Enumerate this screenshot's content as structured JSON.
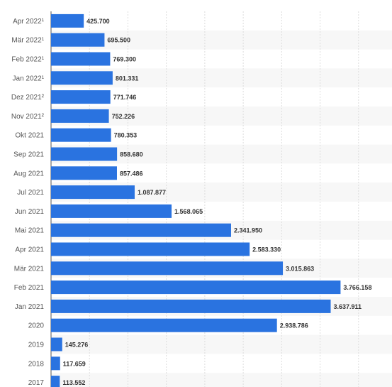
{
  "chart_data": {
    "type": "bar",
    "orientation": "horizontal",
    "categories": [
      "Apr 2022¹",
      "Mär 2022¹",
      "Feb 2022¹",
      "Jan 2022¹",
      "Dez 2021²",
      "Nov 2021²",
      "Okt 2021",
      "Sep 2021",
      "Aug 2021",
      "Jul 2021",
      "Jun 2021",
      "Mai 2021",
      "Apr 2021",
      "Mär 2021",
      "Feb 2021",
      "Jan 2021",
      "2020",
      "2019",
      "2018",
      "2017"
    ],
    "values": [
      425700,
      695500,
      769300,
      801331,
      771746,
      752226,
      780353,
      858680,
      857486,
      1087877,
      1568065,
      2341950,
      2583330,
      3015863,
      3766158,
      3637911,
      2938786,
      145276,
      117659,
      113552
    ],
    "value_labels": [
      "425.700",
      "695.500",
      "769.300",
      "801.331",
      "771.746",
      "752.226",
      "780.353",
      "858.680",
      "857.486",
      "1.087.877",
      "1.568.065",
      "2.341.950",
      "2.583.330",
      "3.015.863",
      "3.766.158",
      "3.637.911",
      "2.938.786",
      "145.276",
      "117.659",
      "113.552"
    ],
    "xlim": [
      0,
      4500000
    ],
    "grid": true,
    "bar_color": "#2a73e0",
    "stripe_color": "#f7f7f7"
  }
}
